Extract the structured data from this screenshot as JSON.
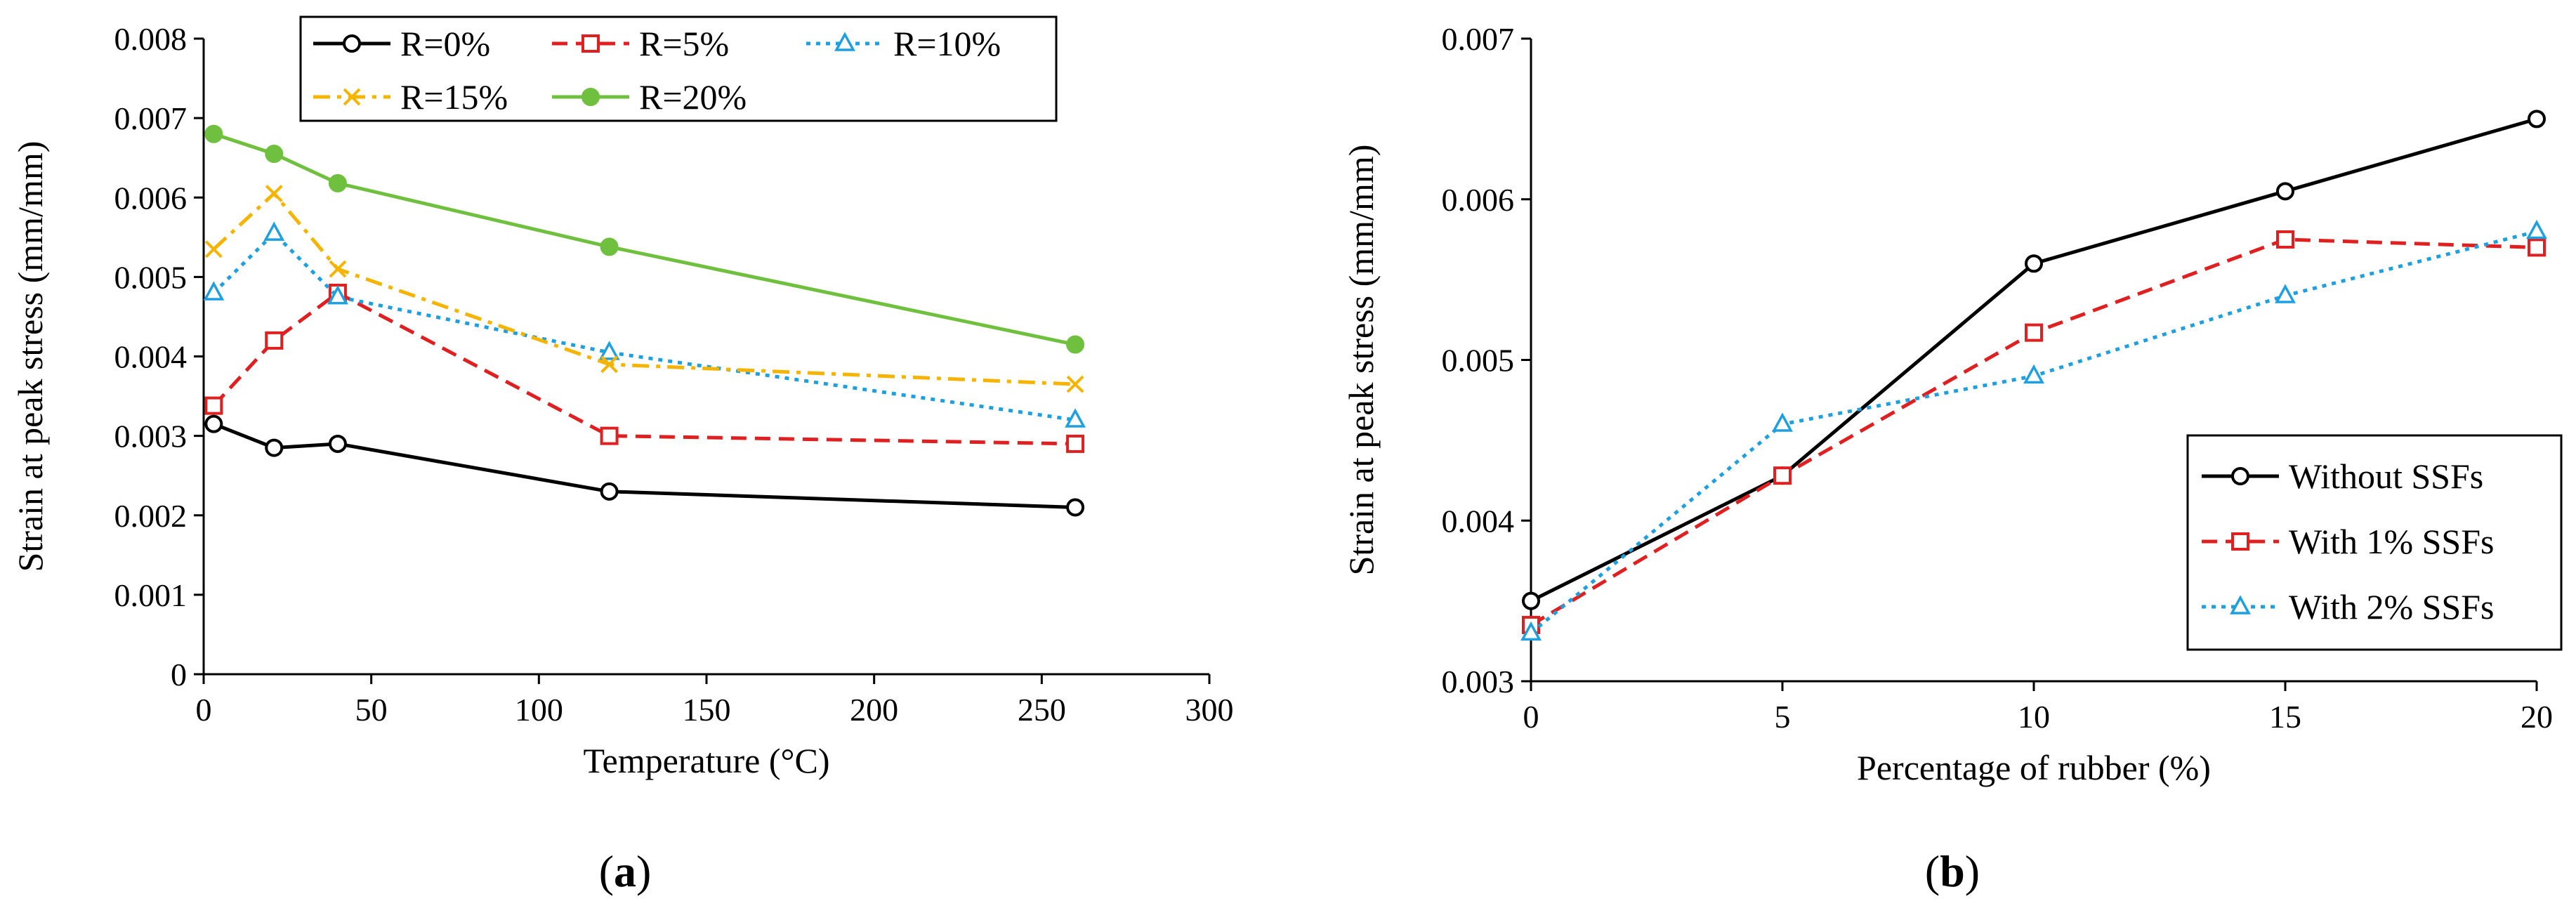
{
  "chart_data": [
    {
      "type": "line",
      "panel_label": "a",
      "xlabel": "Temperature (°C)",
      "ylabel": "Strain at peak stress (mm/mm)",
      "xlim": [
        0,
        300
      ],
      "ylim": [
        0,
        0.008
      ],
      "xticks": [
        "0",
        "50",
        "100",
        "150",
        "200",
        "250",
        "300"
      ],
      "yticks": [
        "0",
        "0.001",
        "0.002",
        "0.003",
        "0.004",
        "0.005",
        "0.006",
        "0.007",
        "0.008"
      ],
      "x": [
        3,
        21,
        40,
        121,
        260
      ],
      "legend_position": "top",
      "series": [
        {
          "name": "R=0%",
          "values": [
            0.00315,
            0.00285,
            0.0029,
            0.0023,
            0.0021
          ],
          "color": "#000000",
          "dash": "solid",
          "marker": "circle"
        },
        {
          "name": "R=5%",
          "values": [
            0.00338,
            0.0042,
            0.0048,
            0.003,
            0.0029
          ],
          "color": "#e02020",
          "dash": "dash",
          "marker": "square"
        },
        {
          "name": "R=10%",
          "values": [
            0.0048,
            0.00555,
            0.00475,
            0.00405,
            0.0032
          ],
          "color": "#1ea0e0",
          "dash": "dot",
          "marker": "triangle"
        },
        {
          "name": "R=15%",
          "values": [
            0.00535,
            0.00605,
            0.0051,
            0.0039,
            0.00365
          ],
          "color": "#f5b400",
          "dash": "dashdot",
          "marker": "x"
        },
        {
          "name": "R=20%",
          "values": [
            0.0068,
            0.00655,
            0.00618,
            0.00538,
            0.00415
          ],
          "color": "#70c040",
          "dash": "solid",
          "marker": "filled-circle"
        }
      ]
    },
    {
      "type": "line",
      "panel_label": "b",
      "xlabel": "Percentage of rubber (%)",
      "ylabel": "Strain at peak stress (mm/mm)",
      "xlim": [
        0,
        20
      ],
      "ylim": [
        0.003,
        0.007
      ],
      "xticks": [
        "0",
        "5",
        "10",
        "15",
        "20"
      ],
      "yticks": [
        "0.003",
        "0.004",
        "0.005",
        "0.006",
        "0.007"
      ],
      "x": [
        0,
        5,
        10,
        15,
        20
      ],
      "legend_position": "bottom-right",
      "series": [
        {
          "name": "Without SSFs",
          "values": [
            0.0035,
            0.00428,
            0.0056,
            0.00605,
            0.0065
          ],
          "color": "#000000",
          "dash": "solid",
          "marker": "circle"
        },
        {
          "name": "With 1% SSFs",
          "values": [
            0.00335,
            0.00428,
            0.00517,
            0.00575,
            0.0057
          ],
          "color": "#e02020",
          "dash": "dash",
          "marker": "square"
        },
        {
          "name": "With 2% SSFs",
          "values": [
            0.0033,
            0.0046,
            0.0049,
            0.0054,
            0.0058
          ],
          "color": "#1ea0e0",
          "dash": "dot",
          "marker": "triangle"
        }
      ]
    }
  ]
}
